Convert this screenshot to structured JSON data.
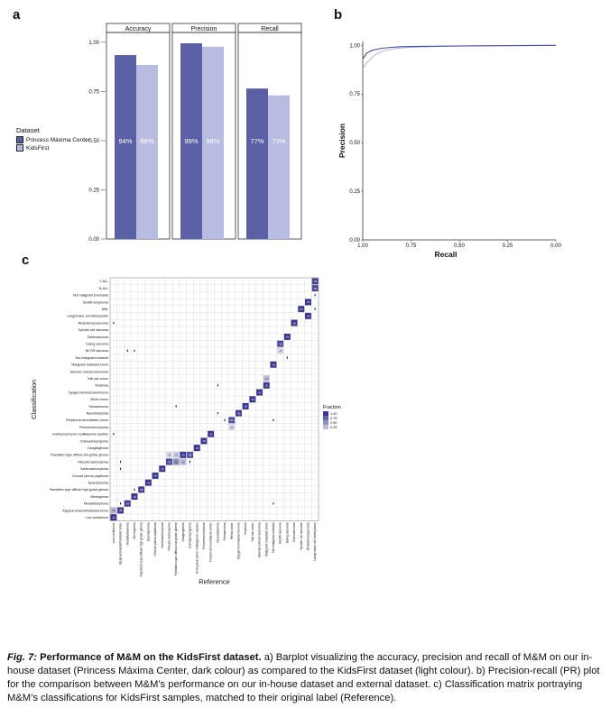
{
  "panels": {
    "a": "a",
    "b": "b",
    "c": "c"
  },
  "panel_a": {
    "facets": [
      "Accuracy",
      "Precision",
      "Recall"
    ],
    "y_ticks": [
      "0.00",
      "0.25",
      "0.50",
      "0.75",
      "1.00"
    ],
    "legend_title": "Dataset",
    "legend_items": [
      "Princess Máxima Center",
      "KidsFirst"
    ],
    "colors": {
      "dark": "#5b60a4",
      "light": "#b7bce0"
    }
  },
  "chart_data": [
    {
      "type": "bar",
      "panel": "a",
      "categories": [
        "Accuracy",
        "Precision",
        "Recall"
      ],
      "series": [
        {
          "name": "Princess Máxima Center",
          "values": [
            0.935,
            0.995,
            0.765
          ],
          "labels": [
            "94%",
            "99%",
            "77%"
          ]
        },
        {
          "name": "KidsFirst",
          "values": [
            0.885,
            0.978,
            0.73
          ],
          "labels": [
            "88%",
            "98%",
            "73%"
          ]
        }
      ],
      "ylim": [
        0,
        1.05
      ]
    },
    {
      "type": "line",
      "panel": "b",
      "xlabel": "Recall",
      "ylabel": "Precision",
      "x_reversed": true,
      "xlim": [
        0,
        1
      ],
      "ylim": [
        0,
        1.02
      ],
      "x_ticks": [
        "1.00",
        "0.75",
        "0.50",
        "0.25",
        "0.00"
      ],
      "y_ticks": [
        "0.00",
        "0.25",
        "0.50",
        "0.75",
        "1.00"
      ],
      "series": [
        {
          "name": "Princess Máxima Center",
          "x": [
            1.0,
            0.98,
            0.95,
            0.9,
            0.85,
            0.8,
            0.7,
            0.5,
            0.3,
            0.0
          ],
          "y": [
            0.93,
            0.96,
            0.975,
            0.985,
            0.99,
            0.993,
            0.995,
            0.997,
            0.998,
            1.0
          ]
        },
        {
          "name": "KidsFirst",
          "x": [
            1.0,
            0.98,
            0.95,
            0.92,
            0.88,
            0.82,
            0.75,
            0.6,
            0.4,
            0.0
          ],
          "y": [
            0.88,
            0.91,
            0.94,
            0.96,
            0.975,
            0.985,
            0.99,
            0.995,
            0.998,
            1.0
          ]
        }
      ]
    },
    {
      "type": "heatmap",
      "panel": "c",
      "xlabel": "Reference",
      "ylabel": "Classification",
      "legend_title": "Fraction",
      "legend_ticks": [
        "1.00",
        "0.75",
        "0.50",
        "0.25"
      ],
      "n_cols": 30,
      "rows": [
        "T-ALL",
        "B-ALL",
        "Not malignant (Hematol)",
        "Burkitt lymphoma",
        "AML",
        "Langerhans cell histiocytosis",
        "Rhabdomyosarcoma",
        "Spindle cell sarcoma",
        "Osteosarcoma",
        "Ewing sarcoma",
        "BCOR sarcoma",
        "Not malignant subsolid",
        "Malignant rhabdoid tumor",
        "Adrenal cortical carcinoma",
        "Yolk sac tumor",
        "Teratoma",
        "Dysgerminoma/Germinoma",
        "Wilms tumor",
        "Schwannoma",
        "Neuroblastoma",
        "Peripheral neuroblastic tumor",
        "Pheochromocytoma",
        "Embryonal tumor multilayered rosettes",
        "Craniopharyngioma",
        "Ganglioglioma",
        "Paediatric-type diffuse low-grade glioma",
        "Pilocytic astrocytoma",
        "Xanthoastrocytoma",
        "Choroid plexus papilloma",
        "Ependymoma",
        "Paediatric-type diffuse high-grade glioma",
        "Meningioma",
        "Medulloblastoma",
        "Atypical teratoid/rhabdoid tumor",
        "Low confidence"
      ],
      "cells": [
        [
          0,
          29,
          0.95
        ],
        [
          1,
          29,
          0.9
        ],
        [
          2,
          29,
          0.03
        ],
        [
          3,
          28,
          1.0
        ],
        [
          4,
          27,
          0.97
        ],
        [
          4,
          29,
          0.03
        ],
        [
          5,
          28,
          1.0
        ],
        [
          6,
          26,
          1.0
        ],
        [
          6,
          0,
          0.03
        ],
        [
          8,
          25,
          1.0
        ],
        [
          9,
          24,
          0.9
        ],
        [
          10,
          24,
          0.1
        ],
        [
          10,
          2,
          0.03
        ],
        [
          10,
          3,
          0.03
        ],
        [
          11,
          25,
          0.05
        ],
        [
          12,
          23,
          1.0
        ],
        [
          14,
          22,
          0.25
        ],
        [
          15,
          22,
          1.0
        ],
        [
          15,
          15,
          0.03
        ],
        [
          16,
          21,
          1.0
        ],
        [
          17,
          20,
          1.0
        ],
        [
          18,
          19,
          1.0
        ],
        [
          18,
          9,
          0.03
        ],
        [
          19,
          18,
          0.95
        ],
        [
          19,
          15,
          0.03
        ],
        [
          20,
          17,
          0.85
        ],
        [
          20,
          16,
          0.05
        ],
        [
          20,
          23,
          0.03
        ],
        [
          21,
          17,
          0.1
        ],
        [
          22,
          14,
          1.0
        ],
        [
          22,
          0,
          0.03
        ],
        [
          23,
          13,
          1.0
        ],
        [
          24,
          12,
          1.0
        ],
        [
          25,
          8,
          0.08
        ],
        [
          25,
          9,
          0.15
        ],
        [
          25,
          10,
          1.0
        ],
        [
          25,
          11,
          0.85
        ],
        [
          26,
          8,
          0.9
        ],
        [
          26,
          9,
          0.5
        ],
        [
          26,
          10,
          0.25
        ],
        [
          26,
          11,
          0.05
        ],
        [
          26,
          1,
          0.03
        ],
        [
          27,
          7,
          1.0
        ],
        [
          27,
          1,
          0.05
        ],
        [
          28,
          6,
          1.0
        ],
        [
          29,
          5,
          1.0
        ],
        [
          30,
          4,
          0.95
        ],
        [
          30,
          3,
          0.05
        ],
        [
          31,
          3,
          1.0
        ],
        [
          32,
          2,
          0.95
        ],
        [
          32,
          1,
          0.05
        ],
        [
          32,
          23,
          0.03
        ],
        [
          33,
          1,
          0.95
        ],
        [
          33,
          0,
          0.3
        ],
        [
          34,
          0,
          1.0
        ]
      ]
    }
  ],
  "caption": {
    "label": "Fig. 7:",
    "title": "Performance of M&M on the KidsFirst dataset.",
    "body": " a) Barplot visualizing the accuracy, precision and recall of M&M on our in-house dataset (Princess Máxima Center, dark colour) as compared to the KidsFirst dataset (light colour). b) Precision-recall (PR) plot for the comparison between M&M’s performance on our in-house dataset and external dataset. c) Classification matrix portraying M&M’s classifications for KidsFirst samples, matched to their original label (Reference)."
  }
}
